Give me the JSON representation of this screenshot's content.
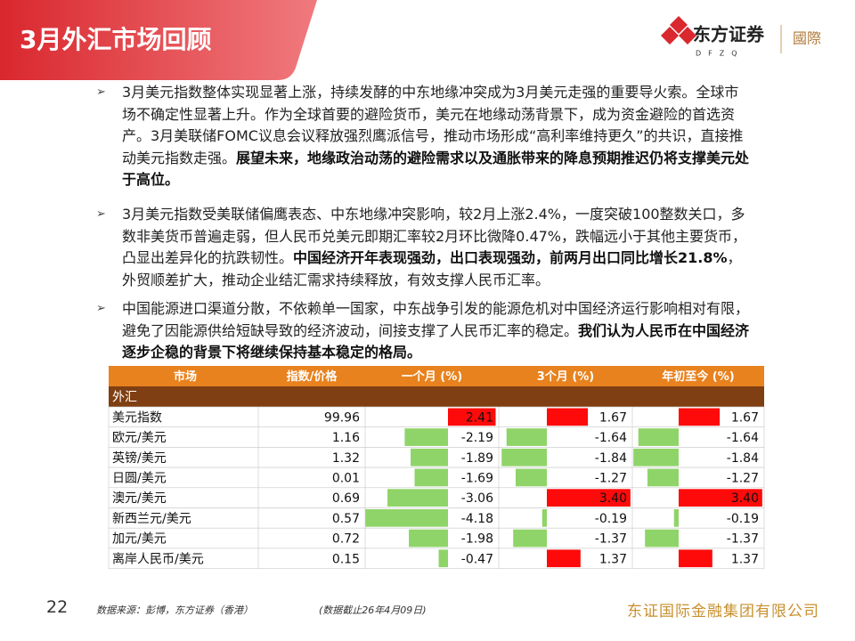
{
  "header": {
    "title": "3月外汇市场回顾",
    "logo_name": "东方证券",
    "logo_sub": "DFZQ",
    "logo_tag": "國際"
  },
  "bullets": [
    [
      {
        "text": "3月美元指数整体实现显著上涨，持续发酵的中东地缘冲突成为3月美元走强的重要导火索。全球市场不确定性显著上升。作为全球首要的避险货币，美元在地缘动荡背景下，成为资金避险的首选资产。3月美联储FOMC议息会议释放强烈鹰派信号，推动市场形成“高利率维持更久”的共识，直接推动美元指数走强。",
        "bold": false
      },
      {
        "text": "展望未来，地缘政治动荡的避险需求以及通胀带来的降息预期推迟仍将支撑美元处于高位。",
        "bold": true
      }
    ],
    [
      {
        "text": "3月美元指数受美联储偏鹰表态、中东地缘冲突影响，较2月上涨2.4%，一度突破100整数关口，多数非美货币普遍走弱，但人民币兑美元即期汇率较2月环比微降0.47%，跌幅远小于其他主要货币，凸显出差异化的抗跌韧性。",
        "bold": false
      },
      {
        "text": "中国经济开年表现强劲，出口表现强劲，前两月出口同比增长21.8%",
        "bold": true
      },
      {
        "text": "，外贸顺差扩大，推动企业结汇需求持续释放，有效支撑人民币汇率。",
        "bold": false
      }
    ],
    [
      {
        "text": "中国能源进口渠道分散，不依赖单一国家，中东战争引发的能源危机对中国经济运行影响相对有限，避免了因能源供给短缺导致的经济波动，间接支撑了人民币汇率的稳定。",
        "bold": false
      },
      {
        "text": "我们认为人民币在中国经济逐步企稳的背景下将继续保持基本稳定的格局。",
        "bold": true
      }
    ]
  ],
  "table": {
    "columns": [
      "市场",
      "指数/价格",
      "一个月 (%)",
      "3个月 (%)",
      "年初至今 (%)"
    ],
    "section": "外汇",
    "rows": [
      [
        "美元指数",
        "99.96",
        "2.41",
        "1.67",
        "1.67"
      ],
      [
        "欧元/美元",
        "1.16",
        "-2.19",
        "-1.64",
        "-1.64"
      ],
      [
        "英镑/美元",
        "1.32",
        "-1.89",
        "-1.84",
        "-1.84"
      ],
      [
        "日圆/美元",
        "0.01",
        "-1.69",
        "-1.27",
        "-1.27"
      ],
      [
        "澳元/美元",
        "0.69",
        "-3.06",
        "3.40",
        "3.40"
      ],
      [
        "新西兰元/美元",
        "0.57",
        "-4.18",
        "-0.19",
        "-0.19"
      ],
      [
        "加元/美元",
        "0.72",
        "-1.98",
        "-1.37",
        "-1.37"
      ],
      [
        "离岸人民币/美元",
        "0.15",
        "-0.47",
        "1.37",
        "1.37"
      ]
    ]
  },
  "footer": {
    "page": "22",
    "source": "数据来源：彭博，东方证券（香港）",
    "date": "(数据截止26年4月09日)",
    "company": "东证国际金融集团有限公司"
  }
}
